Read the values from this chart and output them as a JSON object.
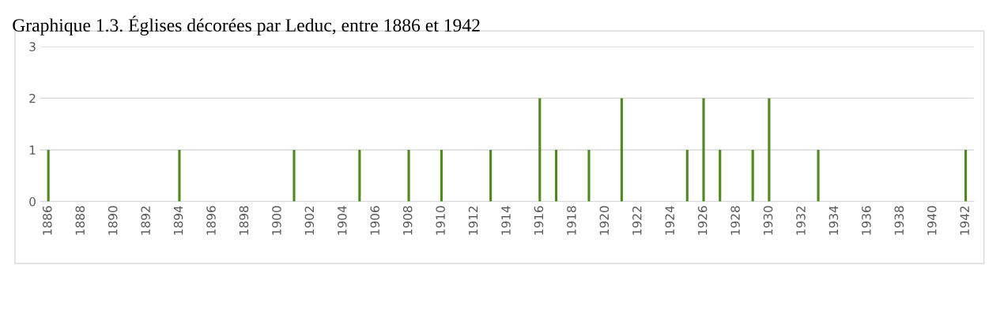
{
  "chart_data": {
    "type": "bar",
    "title": "Graphique 1.3. Églises décorées par Leduc, entre 1886 et 1942",
    "categories": [
      "1886",
      null,
      "1888",
      null,
      "1890",
      null,
      "1892",
      null,
      "1894",
      null,
      "1896",
      null,
      "1898",
      null,
      "1900",
      null,
      "1902",
      null,
      "1904",
      null,
      "1906",
      null,
      "1908",
      null,
      "1910",
      null,
      "1912",
      null,
      "1914",
      null,
      "1916",
      null,
      "1918",
      null,
      "1920",
      null,
      "1922",
      null,
      "1924",
      null,
      "1926",
      null,
      "1928",
      null,
      "1930",
      null,
      "1932",
      null,
      "1934",
      null,
      "1936",
      null,
      "1938",
      null,
      "1940",
      null,
      "1942"
    ],
    "values": [
      1,
      0,
      0,
      0,
      0,
      0,
      0,
      0,
      1,
      0,
      0,
      0,
      0,
      0,
      0,
      1,
      0,
      0,
      0,
      1,
      0,
      0,
      1,
      0,
      1,
      0,
      0,
      1,
      0,
      0,
      2,
      1,
      0,
      1,
      0,
      2,
      0,
      0,
      0,
      1,
      2,
      1,
      0,
      1,
      2,
      0,
      0,
      1,
      0,
      0,
      0,
      0,
      0,
      0,
      0,
      0,
      1
    ],
    "color": "#4e8a1e",
    "ylim": [
      0,
      3
    ],
    "yticks": [
      0,
      1,
      2,
      3
    ],
    "grid": "y"
  }
}
